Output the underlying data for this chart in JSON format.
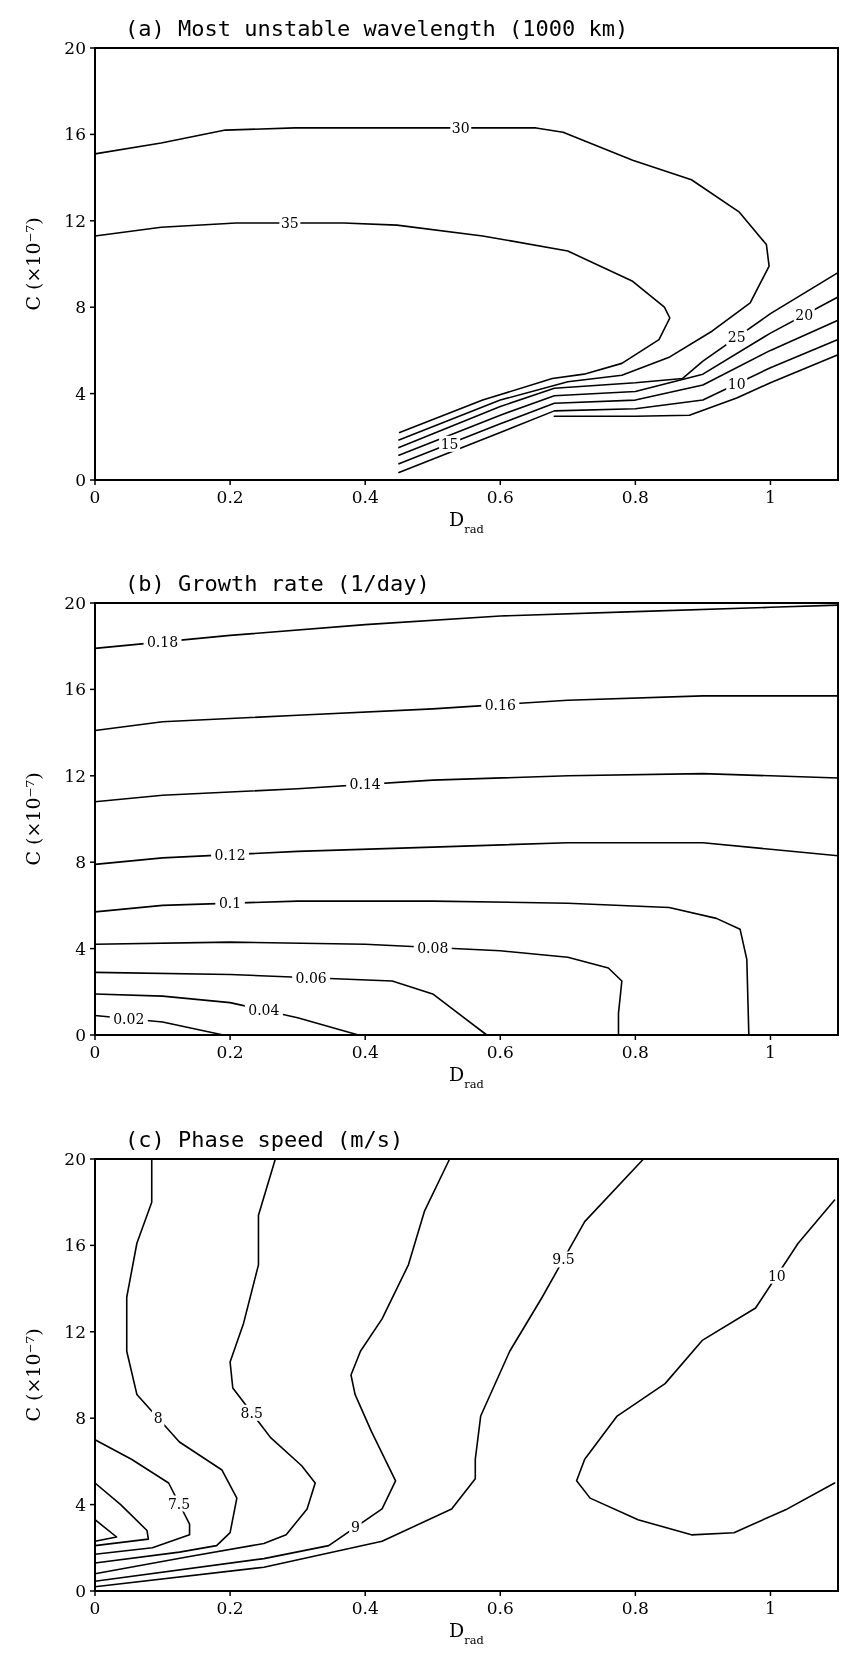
{
  "chart_data": [
    {
      "type": "line",
      "title": "(a) Most unstable wavelength (1000 km)",
      "xlabel": "D$_{rad}$",
      "ylabel": "C (×10⁻⁷)",
      "xlim": [
        0,
        1.1
      ],
      "xticks": [
        0,
        0.2,
        0.4,
        0.6,
        0.8,
        1
      ],
      "ylim": [
        0,
        20
      ],
      "yticks": [
        0,
        4,
        8,
        12,
        16,
        20
      ],
      "grid": false,
      "series": [
        {
          "name": "30",
          "color": "#000000",
          "x": [
            0,
            0.098,
            0.193,
            0.296,
            0.43,
            0.653,
            0.693,
            0.796,
            0.883,
            0.954,
            0.994,
            0.998,
            0.97,
            0.914,
            0.851,
            0.78,
            0.7,
            0.6,
            0.45
          ],
          "values": [
            15.1,
            15.6,
            16.2,
            16.3,
            16.3,
            16.3,
            16.1,
            14.8,
            13.9,
            12.4,
            10.9,
            9.9,
            8.2,
            6.9,
            5.7,
            4.85,
            4.55,
            3.7,
            1.85
          ]
        },
        {
          "name": "35",
          "color": "#000000",
          "x": [
            0,
            0.098,
            0.209,
            0.368,
            0.447,
            0.574,
            0.7,
            0.796,
            0.843,
            0.851,
            0.835,
            0.78,
            0.724,
            0.677,
            0.574,
            0.451
          ],
          "values": [
            11.3,
            11.7,
            11.9,
            11.9,
            11.8,
            11.3,
            10.6,
            9.2,
            8.0,
            7.5,
            6.5,
            5.4,
            4.9,
            4.7,
            3.7,
            2.2
          ]
        },
        {
          "name": "25",
          "color": "#000000",
          "x": [
            0.45,
            0.6,
            0.68,
            0.8,
            0.87,
            0.9,
            1.0,
            1.1
          ],
          "values": [
            1.5,
            3.4,
            4.25,
            4.5,
            4.7,
            5.5,
            7.7,
            9.6
          ]
        },
        {
          "name": "20",
          "color": "#000000",
          "x": [
            0.45,
            0.6,
            0.68,
            0.8,
            0.9,
            1.0,
            1.1
          ],
          "values": [
            1.15,
            3.0,
            3.9,
            4.1,
            4.9,
            6.8,
            8.47
          ]
        },
        {
          "name": "15",
          "color": "#000000",
          "x": [
            0.45,
            0.6,
            0.68,
            0.8,
            0.9,
            1.0,
            1.1
          ],
          "values": [
            0.75,
            2.6,
            3.55,
            3.7,
            4.4,
            6.0,
            7.4
          ]
        },
        {
          "name": "10",
          "color": "#000000",
          "x": [
            0.45,
            0.6,
            0.68,
            0.8,
            0.9,
            1.0,
            1.1
          ],
          "values": [
            0.35,
            2.2,
            3.2,
            3.3,
            3.7,
            5.2,
            6.5
          ]
        },
        {
          "color": "#000000",
          "x": [
            0.68,
            0.8,
            0.88,
            0.95,
            1.0,
            1.1
          ],
          "values": [
            2.95,
            2.95,
            3.0,
            3.8,
            4.5,
            5.8
          ]
        }
      ]
    },
    {
      "type": "line",
      "title": "(b) Growth rate (1/day)",
      "xlabel": "D$_{rad}$",
      "ylabel": "C (×10⁻⁷)",
      "xlim": [
        0,
        1.1
      ],
      "xticks": [
        0,
        0.2,
        0.4,
        0.6,
        0.8,
        1
      ],
      "ylim": [
        0,
        20
      ],
      "yticks": [
        0,
        4,
        8,
        12,
        16,
        20
      ],
      "grid": false,
      "series": [
        {
          "name": "0.18",
          "color": "#000000",
          "x": [
            0,
            0.2,
            0.4,
            0.6,
            0.8,
            1.0,
            1.1
          ],
          "values": [
            17.9,
            18.5,
            19.0,
            19.4,
            19.6,
            19.8,
            19.9
          ]
        },
        {
          "name": "0.16",
          "color": "#000000",
          "x": [
            0,
            0.1,
            0.3,
            0.5,
            0.7,
            0.9,
            1.1
          ],
          "values": [
            14.1,
            14.5,
            14.8,
            15.1,
            15.5,
            15.7,
            15.7
          ]
        },
        {
          "name": "0.14",
          "color": "#000000",
          "x": [
            0,
            0.1,
            0.3,
            0.5,
            0.7,
            0.9,
            1.0,
            1.1
          ],
          "values": [
            10.8,
            11.1,
            11.4,
            11.8,
            12.0,
            12.1,
            12.0,
            11.9
          ]
        },
        {
          "name": "0.12",
          "color": "#000000",
          "x": [
            0,
            0.1,
            0.3,
            0.5,
            0.7,
            0.9,
            1.0,
            1.1
          ],
          "values": [
            7.9,
            8.2,
            8.5,
            8.7,
            8.9,
            8.9,
            8.6,
            8.3
          ]
        },
        {
          "name": "0.1",
          "color": "#000000",
          "x": [
            0,
            0.1,
            0.3,
            0.5,
            0.7,
            0.85,
            0.92,
            0.955,
            0.965,
            0.968
          ],
          "values": [
            5.7,
            6.0,
            6.2,
            6.2,
            6.1,
            5.9,
            5.4,
            4.9,
            3.5,
            0
          ]
        },
        {
          "name": "0.08",
          "color": "#000000",
          "x": [
            0,
            0.2,
            0.4,
            0.6,
            0.7,
            0.76,
            0.78,
            0.775,
            0.775
          ],
          "values": [
            4.2,
            4.3,
            4.2,
            3.9,
            3.6,
            3.1,
            2.5,
            1.0,
            0
          ]
        },
        {
          "name": "0.06",
          "color": "#000000",
          "x": [
            0,
            0.2,
            0.44,
            0.5,
            0.58
          ],
          "values": [
            2.9,
            2.8,
            2.5,
            1.9,
            0
          ]
        },
        {
          "name": "0.04",
          "color": "#000000",
          "x": [
            0,
            0.1,
            0.2,
            0.3,
            0.39
          ],
          "values": [
            1.9,
            1.8,
            1.5,
            0.8,
            0
          ]
        },
        {
          "name": "0.02",
          "color": "#000000",
          "x": [
            0,
            0.1,
            0.19
          ],
          "values": [
            0.9,
            0.6,
            0
          ]
        }
      ]
    },
    {
      "type": "line",
      "title": "(c) Phase speed (m/s)",
      "xlabel": "D$_{rad}$",
      "ylabel": "C (×10⁻⁷)",
      "xlim": [
        0,
        1.1
      ],
      "xticks": [
        0,
        0.2,
        0.4,
        0.6,
        0.8,
        1
      ],
      "ylim": [
        0,
        20
      ],
      "yticks": [
        0,
        4,
        8,
        12,
        16,
        20
      ],
      "grid": false,
      "series": [
        {
          "color": "#000000",
          "x": [
            0,
            0.032,
            0
          ],
          "values": [
            3.3,
            2.5,
            2.3
          ]
        },
        {
          "color": "#000000",
          "x": [
            0,
            0.038,
            0.077,
            0.079,
            0
          ],
          "values": [
            5.0,
            4.0,
            2.8,
            2.4,
            2.1
          ]
        },
        {
          "name": "7.5",
          "color": "#000000",
          "x": [
            0,
            0.054,
            0.109,
            0.14,
            0.14,
            0.085,
            0
          ],
          "values": [
            7.0,
            6.1,
            5.0,
            3.1,
            2.6,
            2.0,
            1.7
          ]
        },
        {
          "name": "8",
          "color": "#000000",
          "x": [
            0.084,
            0.084,
            0.062,
            0.047,
            0.047,
            0.062,
            0.125,
            0.188,
            0.21,
            0.2,
            0.18,
            0.125,
            0
          ],
          "values": [
            20,
            18,
            16.1,
            13.6,
            11.1,
            9.1,
            6.9,
            5.6,
            4.3,
            2.7,
            2.1,
            1.8,
            1.3
          ]
        },
        {
          "name": "8.5",
          "color": "#000000",
          "x": [
            0.267,
            0.242,
            0.242,
            0.22,
            0.2,
            0.204,
            0.26,
            0.306,
            0.326,
            0.314,
            0.283,
            0.25,
            0.14,
            0
          ],
          "values": [
            20,
            17.4,
            15.1,
            12.4,
            10.6,
            9.4,
            7.1,
            5.8,
            5.0,
            3.8,
            2.6,
            2.2,
            1.6,
            0.8
          ]
        },
        {
          "name": "9",
          "color": "#000000",
          "x": [
            0.525,
            0.488,
            0.464,
            0.425,
            0.393,
            0.379,
            0.385,
            0.409,
            0.445,
            0.425,
            0.346,
            0.25,
            0
          ],
          "values": [
            20,
            17.6,
            15.1,
            12.6,
            11.1,
            10.0,
            9.1,
            7.4,
            5.1,
            3.8,
            2.1,
            1.5,
            0.45
          ]
        },
        {
          "name": "9.5",
          "color": "#000000",
          "x": [
            0.812,
            0.725,
            0.662,
            0.614,
            0.571,
            0.563,
            0.563,
            0.528,
            0.425,
            0.25,
            0
          ],
          "values": [
            20,
            17.1,
            13.6,
            11.1,
            8.1,
            6.1,
            5.2,
            3.8,
            2.3,
            1.1,
            0.2
          ]
        },
        {
          "name": "10",
          "color": "#000000",
          "x": [
            1.095,
            1.041,
            0.978,
            0.899,
            0.844,
            0.773,
            0.725,
            0.713,
            0.733,
            0.804,
            0.883,
            0.946,
            1.025,
            1.095
          ],
          "values": [
            18.1,
            16.1,
            13.1,
            11.6,
            9.6,
            8.1,
            6.1,
            5.1,
            4.3,
            3.3,
            2.6,
            2.7,
            3.8,
            5.0
          ]
        }
      ]
    }
  ]
}
